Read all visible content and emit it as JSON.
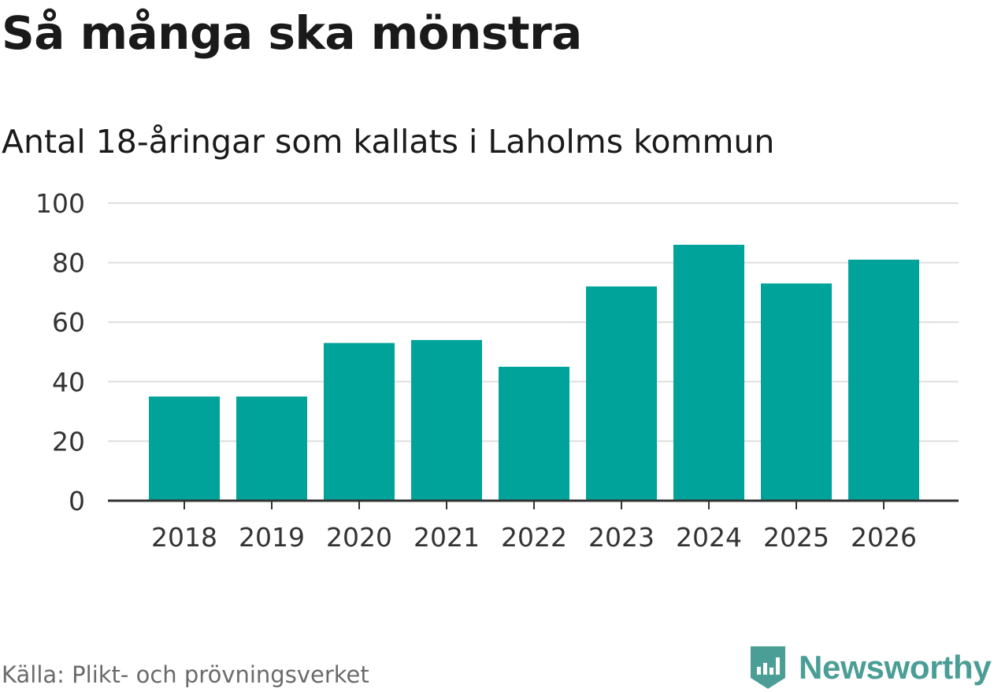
{
  "chart_data": {
    "type": "bar",
    "title": "Så många ska mönstra",
    "subtitle": "Antal 18-åringar som kallats i Laholms kommun",
    "categories": [
      "2018",
      "2019",
      "2020",
      "2021",
      "2022",
      "2023",
      "2024",
      "2025",
      "2026"
    ],
    "values": [
      35,
      35,
      53,
      54,
      45,
      72,
      86,
      73,
      81
    ],
    "xlabel": "",
    "ylabel": "",
    "ylim": [
      0,
      100
    ],
    "yticks": [
      0,
      20,
      40,
      60,
      80,
      100
    ],
    "grid": true,
    "bar_color": "#00a39a",
    "source": "Källa: Plikt- och prövningsverket"
  },
  "brand": {
    "name": "Newsworthy",
    "color": "#4a9e96"
  }
}
